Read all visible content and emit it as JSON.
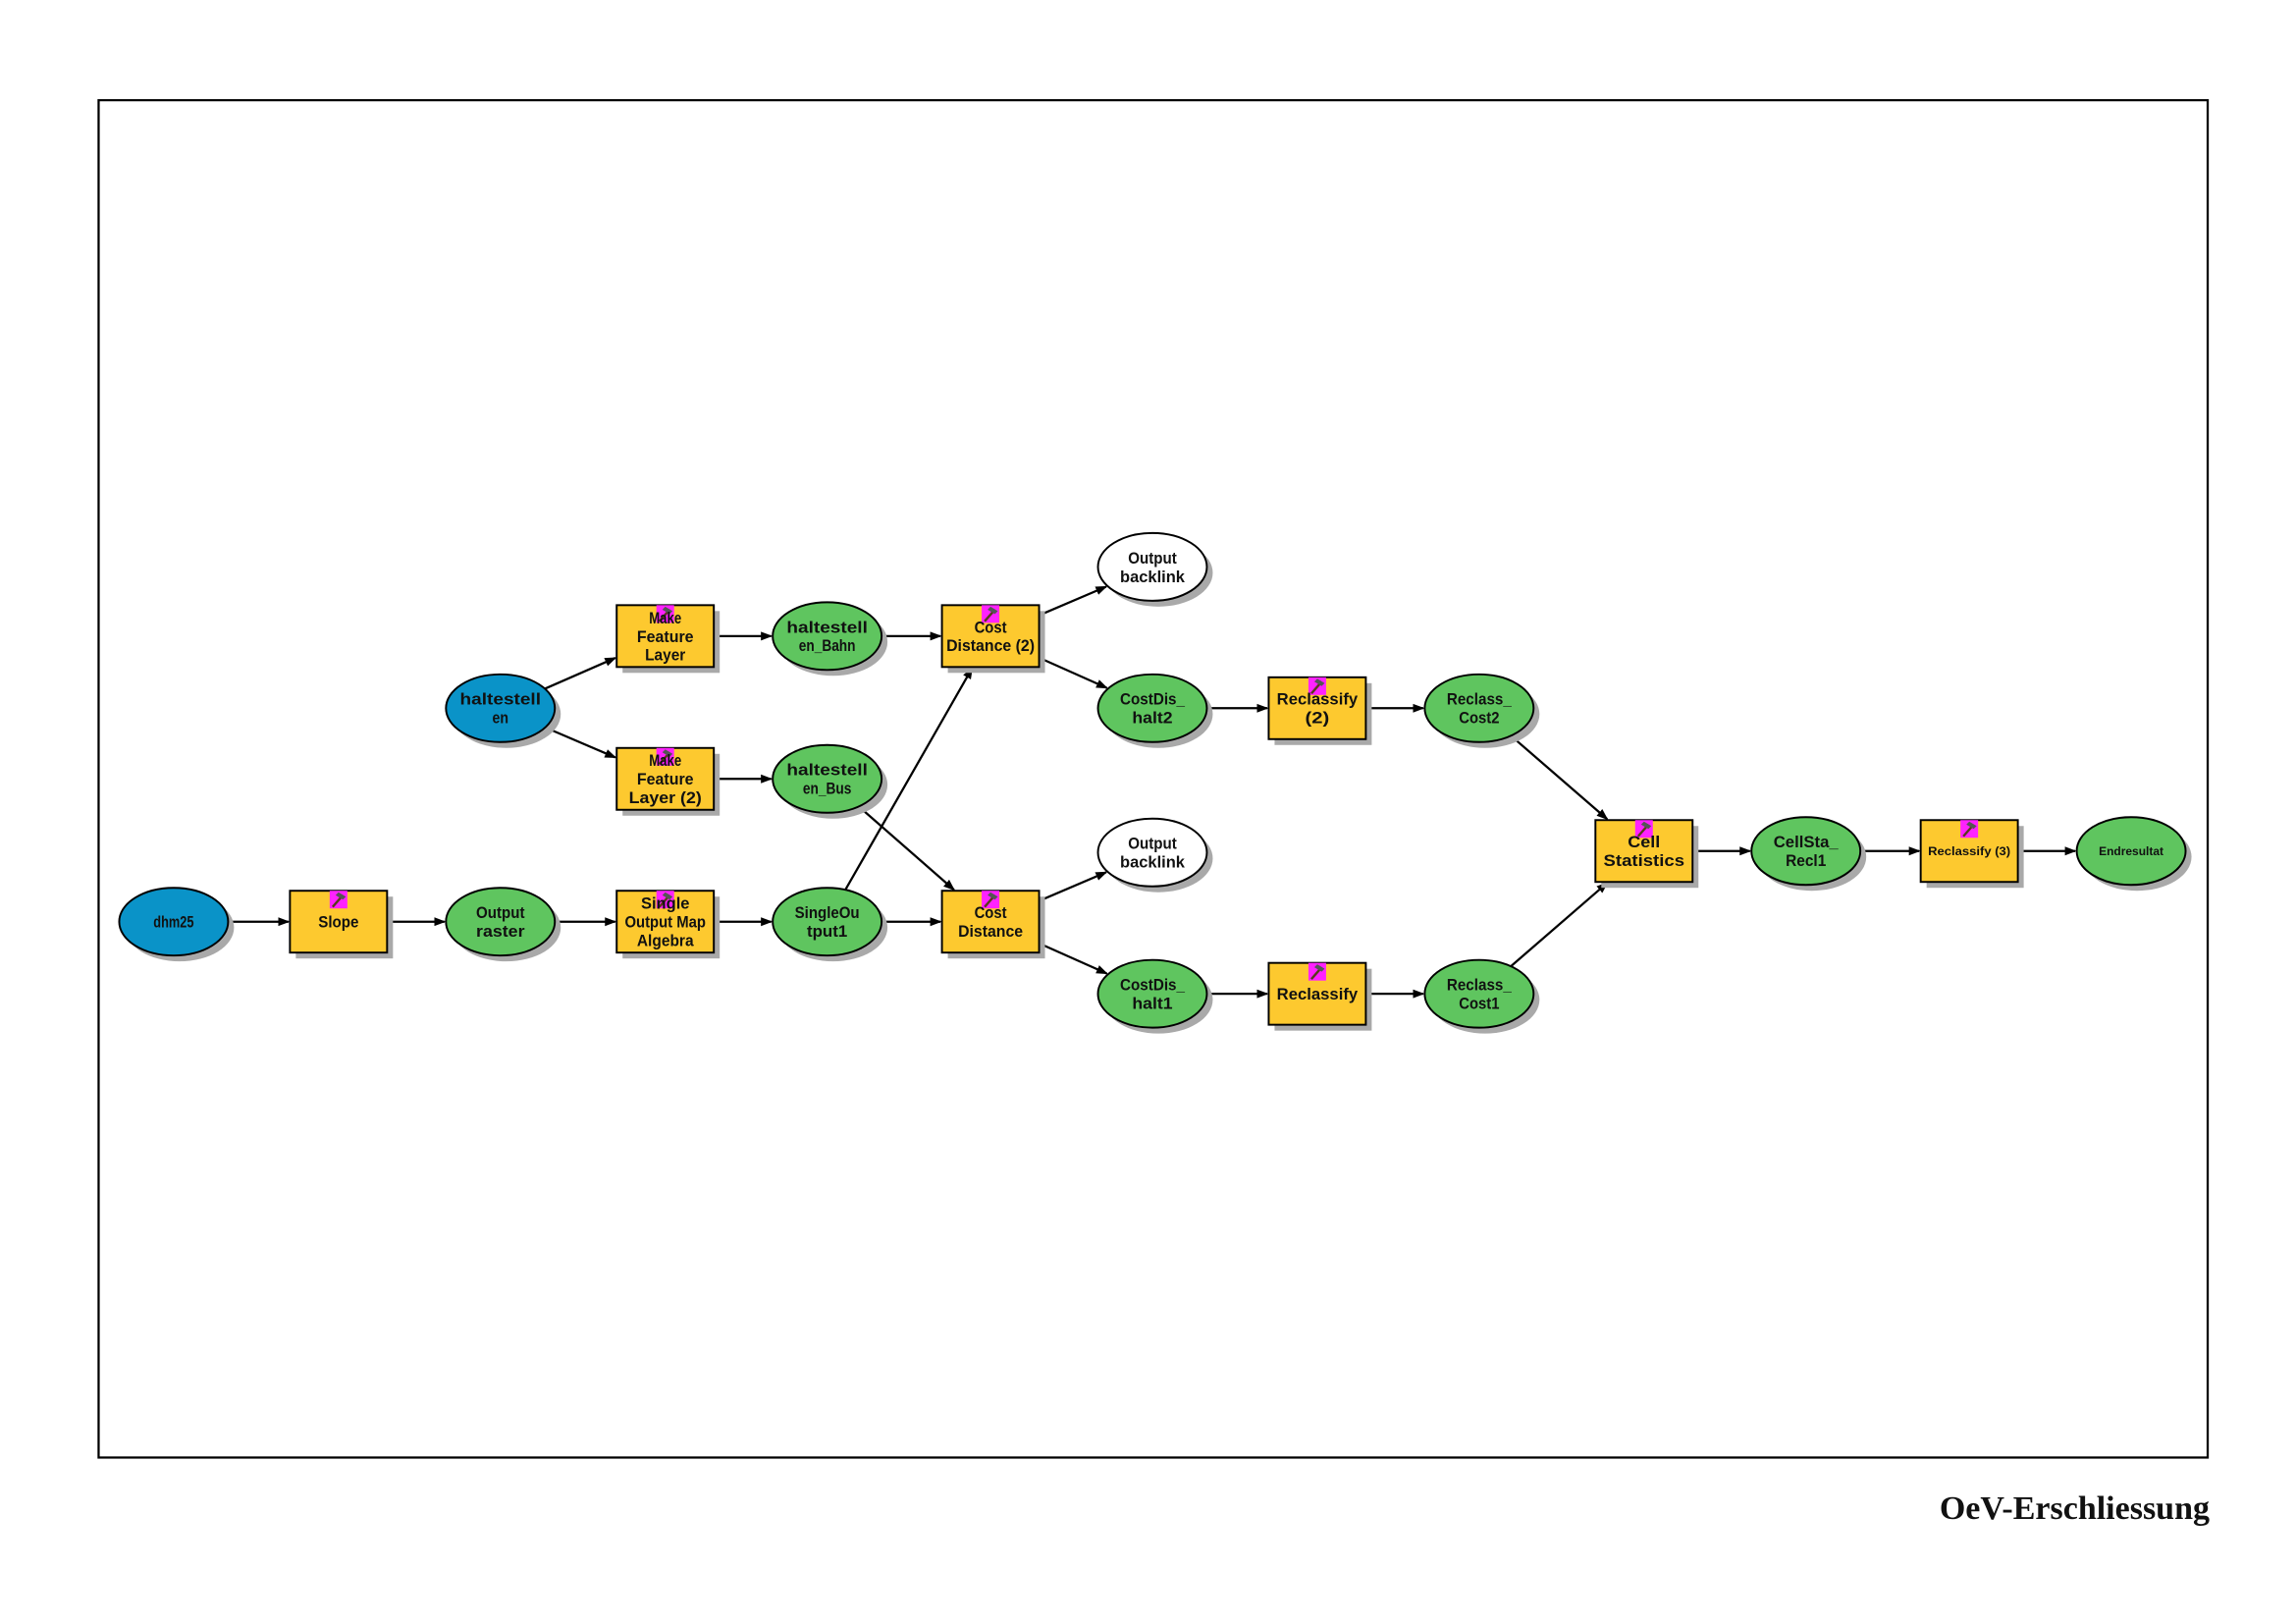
{
  "title": "OeV-Erschliessung",
  "colors": {
    "input_data": "#0a93c8",
    "derived_data": "#5fc55f",
    "tool": "#fdc92f",
    "intermediate_output": "#ffffff",
    "tool_icon": "#ff22ff",
    "shadow": "#a9a9a9",
    "line": "#000000"
  },
  "nodes": [
    {
      "id": "dhm25",
      "kind": "input",
      "lines": [
        "dhm25"
      ]
    },
    {
      "id": "slope",
      "kind": "tool",
      "icon": "hammer-icon",
      "lines": [
        "Slope"
      ]
    },
    {
      "id": "outraster",
      "kind": "data",
      "lines": [
        "Output",
        "raster"
      ]
    },
    {
      "id": "somap",
      "kind": "tool",
      "icon": "hammer-icon",
      "lines": [
        "Single",
        "Output Map",
        "Algebra"
      ]
    },
    {
      "id": "singleout1",
      "kind": "data",
      "lines": [
        "SingleOu",
        "tput1"
      ]
    },
    {
      "id": "costdist",
      "kind": "tool",
      "icon": "hammer-icon",
      "lines": [
        "Cost",
        "Distance"
      ]
    },
    {
      "id": "backlink1",
      "kind": "output",
      "lines": [
        "Output",
        "backlink"
      ]
    },
    {
      "id": "costdis_halt1",
      "kind": "data",
      "lines": [
        "CostDis_",
        "halt1"
      ]
    },
    {
      "id": "reclassify",
      "kind": "tool",
      "icon": "hammer-icon",
      "lines": [
        "Reclassify"
      ]
    },
    {
      "id": "reclass_cost1",
      "kind": "data",
      "lines": [
        "Reclass_",
        "Cost1"
      ]
    },
    {
      "id": "cellstats",
      "kind": "tool",
      "icon": "hammer-icon",
      "lines": [
        "Cell",
        "Statistics"
      ]
    },
    {
      "id": "cellsta_recl1",
      "kind": "data",
      "lines": [
        "CellSta_",
        "Recl1"
      ]
    },
    {
      "id": "reclassify3",
      "kind": "tool",
      "icon": "hammer-icon",
      "small": true,
      "lines": [
        "Reclassify (3)"
      ]
    },
    {
      "id": "endresultat",
      "kind": "data",
      "small": true,
      "lines": [
        "Endresultat"
      ]
    },
    {
      "id": "haltestellen",
      "kind": "input",
      "lines": [
        "haltestell",
        "en"
      ]
    },
    {
      "id": "mfl",
      "kind": "tool",
      "icon": "hammer-icon",
      "lines": [
        "Make",
        "Feature",
        "Layer"
      ]
    },
    {
      "id": "mfl2",
      "kind": "tool",
      "icon": "hammer-icon",
      "lines": [
        "Make",
        "Feature",
        "Layer (2)"
      ]
    },
    {
      "id": "hs_bahn",
      "kind": "data",
      "lines": [
        "haltestell",
        "en_Bahn"
      ]
    },
    {
      "id": "hs_bus",
      "kind": "data",
      "lines": [
        "haltestell",
        "en_Bus"
      ]
    },
    {
      "id": "costdist2",
      "kind": "tool",
      "icon": "hammer-icon",
      "lines": [
        "Cost",
        "Distance (2)"
      ]
    },
    {
      "id": "backlink2",
      "kind": "output",
      "lines": [
        "Output",
        "backlink"
      ]
    },
    {
      "id": "costdis_halt2",
      "kind": "data",
      "lines": [
        "CostDis_",
        "halt2"
      ]
    },
    {
      "id": "reclassify2",
      "kind": "tool",
      "icon": "hammer-icon",
      "lines": [
        "Reclassify",
        "(2)"
      ]
    },
    {
      "id": "reclass_cost2",
      "kind": "data",
      "lines": [
        "Reclass_",
        "Cost2"
      ]
    }
  ],
  "edges": [
    [
      "dhm25",
      "slope"
    ],
    [
      "slope",
      "outraster"
    ],
    [
      "outraster",
      "somap"
    ],
    [
      "somap",
      "singleout1"
    ],
    [
      "singleout1",
      "costdist"
    ],
    [
      "singleout1",
      "costdist2"
    ],
    [
      "hs_bus",
      "costdist"
    ],
    [
      "costdist",
      "backlink1"
    ],
    [
      "costdist",
      "costdis_halt1"
    ],
    [
      "costdis_halt1",
      "reclassify"
    ],
    [
      "reclassify",
      "reclass_cost1"
    ],
    [
      "reclass_cost1",
      "cellstats"
    ],
    [
      "reclass_cost2",
      "cellstats"
    ],
    [
      "cellstats",
      "cellsta_recl1"
    ],
    [
      "cellsta_recl1",
      "reclassify3"
    ],
    [
      "reclassify3",
      "endresultat"
    ],
    [
      "haltestellen",
      "mfl"
    ],
    [
      "haltestellen",
      "mfl2"
    ],
    [
      "mfl",
      "hs_bahn"
    ],
    [
      "mfl2",
      "hs_bus"
    ],
    [
      "hs_bahn",
      "costdist2"
    ],
    [
      "costdist2",
      "backlink2"
    ],
    [
      "costdist2",
      "costdis_halt2"
    ],
    [
      "costdis_halt2",
      "reclassify2"
    ],
    [
      "reclassify2",
      "reclass_cost2"
    ]
  ]
}
